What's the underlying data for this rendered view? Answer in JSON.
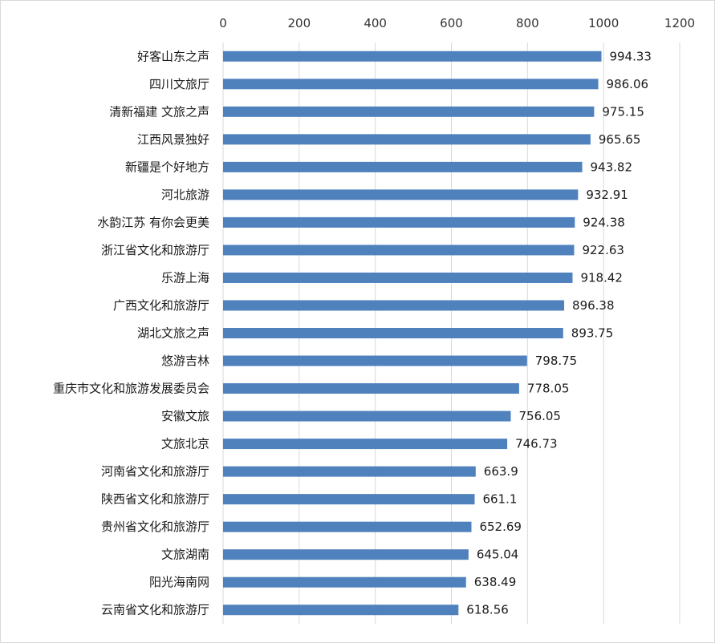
{
  "chart_data": {
    "type": "bar",
    "orientation": "horizontal",
    "title": "",
    "xlabel": "",
    "ylabel": "",
    "xlim": [
      0,
      1200
    ],
    "ticks": [
      0,
      200,
      400,
      600,
      800,
      1000,
      1200
    ],
    "axis_position": "top",
    "grid": true,
    "legend": "none",
    "bar_color": "#4f81bd",
    "categories": [
      "好客山东之声",
      "四川文旅厅",
      "清新福建 文旅之声",
      "江西风景独好",
      "新疆是个好地方",
      "河北旅游",
      "水韵江苏 有你会更美",
      "浙江省文化和旅游厅",
      "乐游上海",
      "广西文化和旅游厅",
      "湖北文旅之声",
      "悠游吉林",
      "重庆市文化和旅游发展委员会",
      "安徽文旅",
      "文旅北京",
      "河南省文化和旅游厅",
      "陕西省文化和旅游厅",
      "贵州省文化和旅游厅",
      "文旅湖南",
      "阳光海南网",
      "云南省文化和旅游厅"
    ],
    "values": [
      994.33,
      986.06,
      975.15,
      965.65,
      943.82,
      932.91,
      924.38,
      922.63,
      918.42,
      896.38,
      893.75,
      798.75,
      778.05,
      756.05,
      746.73,
      663.9,
      661.1,
      652.69,
      645.04,
      638.49,
      618.56
    ],
    "value_labels": [
      "994.33",
      "986.06",
      "975.15",
      "965.65",
      "943.82",
      "932.91",
      "924.38",
      "922.63",
      "918.42",
      "896.38",
      "893.75",
      "798.75",
      "778.05",
      "756.05",
      "746.73",
      "663.9",
      "661.1",
      "652.69",
      "645.04",
      "638.49",
      "618.56"
    ]
  }
}
